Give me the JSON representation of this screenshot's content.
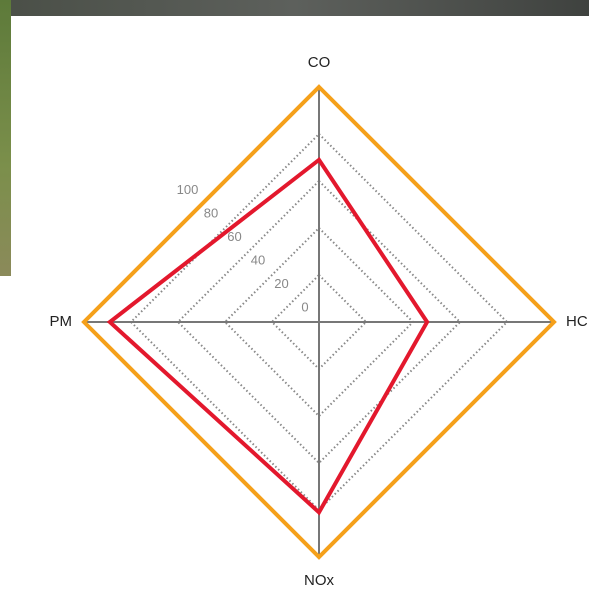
{
  "chart_data": {
    "type": "radar",
    "categories": [
      "CO",
      "HC",
      "NOx",
      "PM"
    ],
    "series": [
      {
        "color": "#f5a01a",
        "values": [
          100,
          100,
          100,
          100
        ]
      },
      {
        "color": "#e3182d",
        "values": [
          69,
          46,
          81,
          89
        ]
      }
    ],
    "ylim": [
      0,
      100
    ],
    "yticks": [
      0,
      20,
      40,
      60,
      80,
      100
    ],
    "grid": true
  }
}
